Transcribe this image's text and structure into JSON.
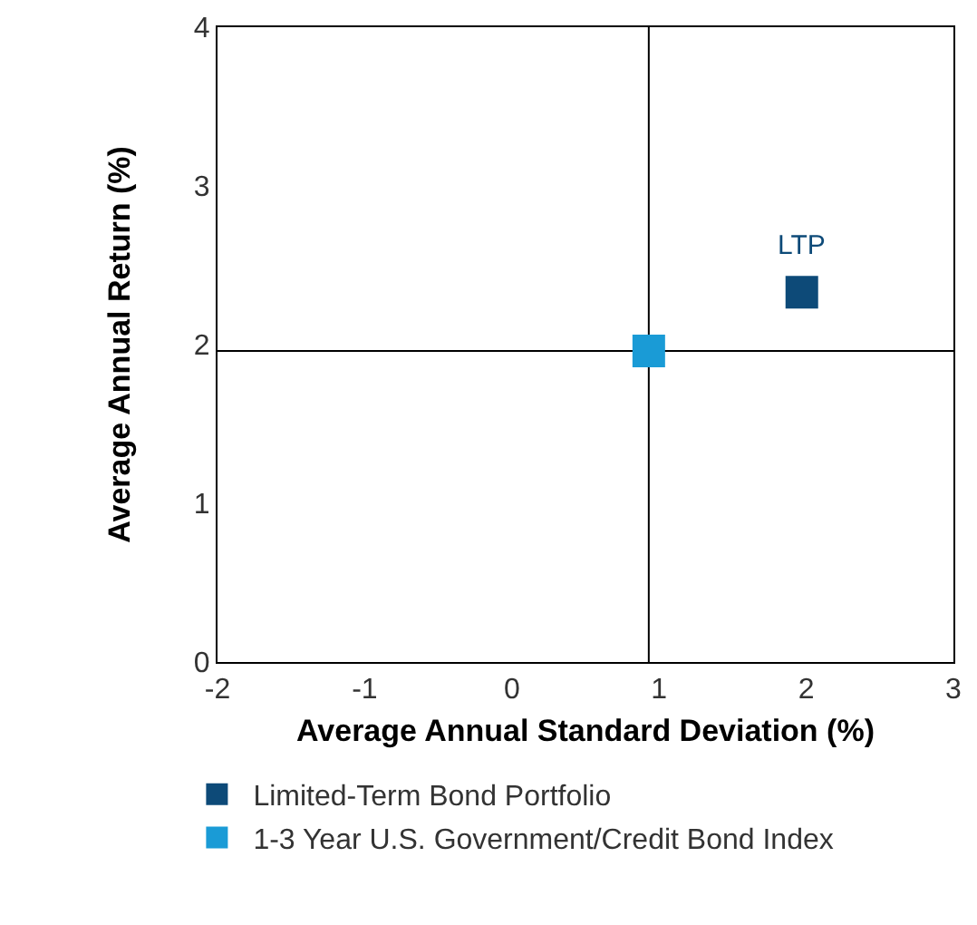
{
  "chart_data": {
    "type": "scatter",
    "xlabel": "Average Annual Standard Deviation (%)",
    "ylabel": "Average Annual Return (%)",
    "xlim": [
      -2,
      3
    ],
    "xticks": [
      -2,
      -1,
      0,
      1,
      2,
      3
    ],
    "ylim": [
      0,
      4
    ],
    "yticks": [
      0,
      1,
      2,
      3,
      4
    ],
    "marker": "square",
    "grid": false,
    "legend": "bottom",
    "series": [
      {
        "name": "Limited-Term Bond Portfolio",
        "color": "#0d4a78",
        "x": [
          1.97
        ],
        "values": [
          2.33
        ]
      },
      {
        "name": "1-3 Year U.S. Government/Credit Bond Index",
        "color": "#1a9bd6",
        "x": [
          0.93
        ],
        "values": [
          1.96
        ]
      }
    ],
    "ref_lines": [
      {
        "axis": "x",
        "value": 0.93,
        "color": "#000000"
      },
      {
        "axis": "y",
        "value": 1.96,
        "color": "#000000"
      }
    ],
    "annotations": [
      {
        "text": "LTP",
        "x": 1.97,
        "y": 2.33
      }
    ]
  }
}
